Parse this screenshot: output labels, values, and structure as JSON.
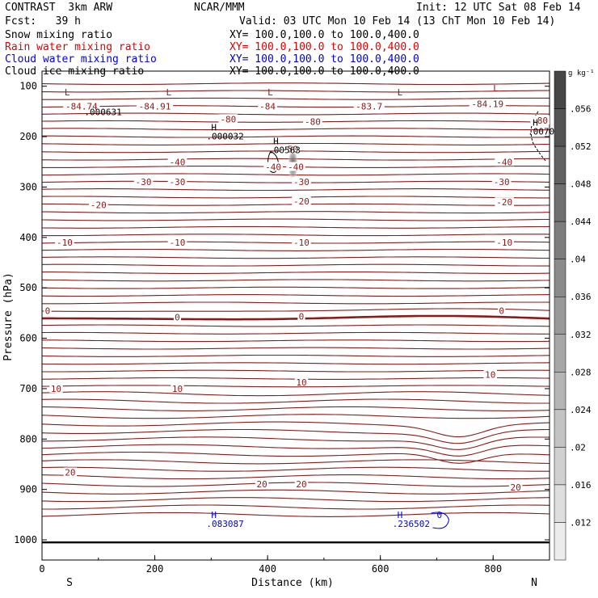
{
  "header": {
    "model": "CONTRAST  3km ARW",
    "org": "NCAR/MMM",
    "init": "Init: 12 UTC Sat 08 Feb 14",
    "fcst": "Fcst:   39 h",
    "valid": "Valid: 03 UTC Mon 10 Feb 14 (13 ChT Mon 10 Feb 14)",
    "fields": [
      {
        "name": "Snow mixing ratio",
        "xy": "XY= 100.0,100.0 to 100.0,400.0",
        "color": "#000000"
      },
      {
        "name": "Rain water mixing ratio",
        "xy": "XY= 100.0,100.0 to 100.0,400.0",
        "color": "#e00000"
      },
      {
        "name": "Cloud water mixing ratio",
        "xy": "XY= 100.0,100.0 to 100.0,400.0",
        "color": "#0000e6"
      },
      {
        "name": "Cloud ice mixing ratio",
        "xy": "XY= 100.0,100.0 to 100.0,400.0",
        "color": "#000000"
      }
    ]
  },
  "chart_data": {
    "type": "contour",
    "xlabel": "Distance (km)",
    "ylabel": "Pressure (hPa)",
    "xlim": [
      0,
      900
    ],
    "ylim": [
      1040,
      70
    ],
    "xticks": [
      0,
      200,
      400,
      600,
      800
    ],
    "yticks": [
      100,
      200,
      300,
      400,
      500,
      600,
      700,
      800,
      900,
      1000
    ],
    "x_endpoints": {
      "left": "S",
      "right": "N"
    },
    "colorbar": {
      "unit": "g kg⁻¹",
      "ticks": [
        ".012",
        ".016",
        ".02",
        ".024",
        ".028",
        ".032",
        ".036",
        ".04",
        ".044",
        ".048",
        ".052",
        ".056"
      ]
    },
    "temperature_contour_color": "#8b1a1a",
    "temperature_labels": [
      {
        "x": 70,
        "p": 140,
        "text": "-84.74"
      },
      {
        "x": 200,
        "p": 140,
        "text": "-84.91"
      },
      {
        "x": 330,
        "p": 165,
        "text": "-80"
      },
      {
        "x": 480,
        "p": 170,
        "text": "-80"
      },
      {
        "x": 400,
        "p": 140,
        "text": "-84"
      },
      {
        "x": 580,
        "p": 140,
        "text": "-83.7"
      },
      {
        "x": 790,
        "p": 135,
        "text": "-84.19"
      },
      {
        "x": 883,
        "p": 168,
        "text": "-80"
      },
      {
        "x": 440,
        "p": 225,
        "text": "-50"
      },
      {
        "x": 240,
        "p": 250,
        "text": "-40"
      },
      {
        "x": 410,
        "p": 260,
        "text": "-40"
      },
      {
        "x": 450,
        "p": 260,
        "text": "-40"
      },
      {
        "x": 820,
        "p": 250,
        "text": "-40"
      },
      {
        "x": 180,
        "p": 290,
        "text": "-30"
      },
      {
        "x": 240,
        "p": 290,
        "text": "-30"
      },
      {
        "x": 460,
        "p": 290,
        "text": "-30"
      },
      {
        "x": 815,
        "p": 290,
        "text": "-30"
      },
      {
        "x": 100,
        "p": 335,
        "text": "-20"
      },
      {
        "x": 460,
        "p": 328,
        "text": "-20"
      },
      {
        "x": 820,
        "p": 330,
        "text": "-20"
      },
      {
        "x": 40,
        "p": 410,
        "text": "-10"
      },
      {
        "x": 240,
        "p": 410,
        "text": "-10"
      },
      {
        "x": 460,
        "p": 410,
        "text": "-10"
      },
      {
        "x": 820,
        "p": 410,
        "text": "-10"
      },
      {
        "x": 10,
        "p": 545,
        "text": "0"
      },
      {
        "x": 240,
        "p": 558,
        "text": "0"
      },
      {
        "x": 460,
        "p": 557,
        "text": "0"
      },
      {
        "x": 815,
        "p": 545,
        "text": "0"
      },
      {
        "x": 25,
        "p": 700,
        "text": "10"
      },
      {
        "x": 240,
        "p": 700,
        "text": "10"
      },
      {
        "x": 460,
        "p": 687,
        "text": "10"
      },
      {
        "x": 795,
        "p": 672,
        "text": "10"
      },
      {
        "x": 50,
        "p": 866,
        "text": "20"
      },
      {
        "x": 390,
        "p": 889,
        "text": "20"
      },
      {
        "x": 460,
        "p": 889,
        "text": "20"
      },
      {
        "x": 840,
        "p": 896,
        "text": "20"
      }
    ],
    "extrema": [
      {
        "x": 40,
        "p": 118,
        "kind": "L",
        "color": "#8b1a1a"
      },
      {
        "x": 220,
        "p": 118,
        "kind": "L",
        "color": "#8b1a1a"
      },
      {
        "x": 400,
        "p": 118,
        "kind": "L",
        "color": "#8b1a1a"
      },
      {
        "x": 630,
        "p": 118,
        "kind": "L",
        "color": "#8b1a1a"
      },
      {
        "x": 800,
        "p": 110,
        "kind": "L",
        "color": "#8b1a1a"
      },
      {
        "x": 300,
        "p": 188,
        "kind": "H",
        "value": ".000032",
        "color": "#000000"
      },
      {
        "x": 410,
        "p": 215,
        "kind": "H",
        "value": ".00563",
        "color": "#000000"
      },
      {
        "x": 870,
        "p": 178,
        "kind": "H",
        "value": ".0070",
        "color": "#000000"
      },
      {
        "x": 300,
        "p": 957,
        "kind": "H",
        "value": ".083087",
        "color": "#0000e6"
      },
      {
        "x": 630,
        "p": 957,
        "kind": "H",
        "value": ".236502",
        "color": "#0000e6"
      }
    ],
    "extra_labels": [
      {
        "x": 75,
        "p": 157,
        "text": ".000631",
        "color": "#000000"
      },
      {
        "x": 700,
        "p": 957,
        "text": "0",
        "color": "#0000e6"
      }
    ]
  }
}
